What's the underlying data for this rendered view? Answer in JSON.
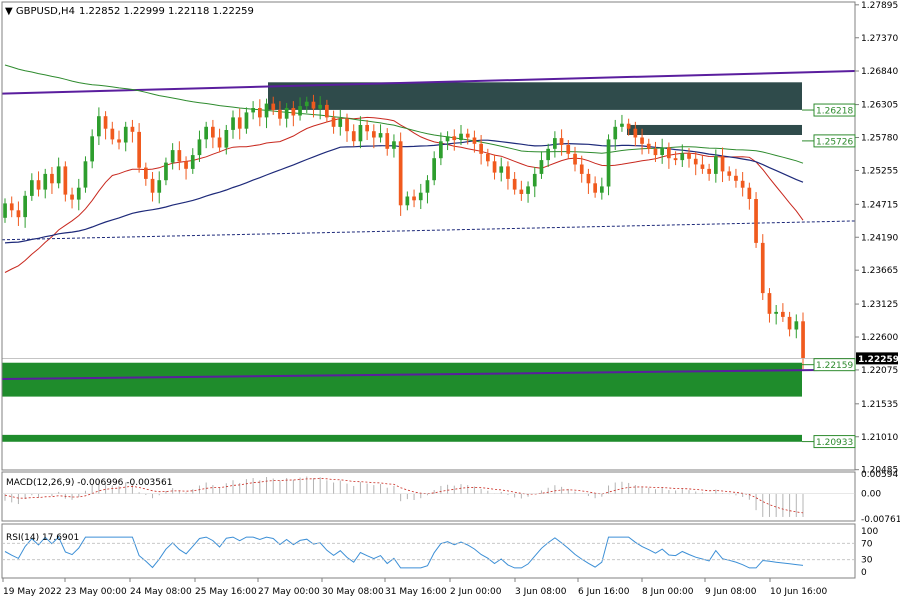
{
  "chart_data": {
    "type": "candlestick",
    "symbol": "GBPUSD,H4",
    "ohlc_header": "1.22852 1.22999 1.22118 1.22259",
    "price_axis": {
      "ylim": [
        1.2048,
        1.2794
      ],
      "ticks": [
        "1.27895",
        "1.27370",
        "1.26840",
        "1.26305",
        "1.25780",
        "1.25255",
        "1.24715",
        "1.24190",
        "1.23665",
        "1.23125",
        "1.22600",
        "1.22075",
        "1.21535",
        "1.21010",
        "1.20485"
      ]
    },
    "last_price": "1.22259",
    "level_labels": [
      "1.26218",
      "1.25726",
      "1.22159",
      "1.20933"
    ],
    "x_ticks": [
      "19 May 2022",
      "23 May 00:00",
      "24 May 08:00",
      "25 May 16:00",
      "27 May 00:00",
      "30 May 08:00",
      "31 May 16:00",
      "2 Jun 00:00",
      "3 Jun 08:00",
      "6 Jun 16:00",
      "8 Jun 00:00",
      "9 Jun 08:00",
      "10 Jun 16:00"
    ],
    "closes": [
      1.2473,
      1.2462,
      1.2451,
      1.2485,
      1.251,
      1.2495,
      1.252,
      1.2505,
      1.2532,
      1.2487,
      1.2479,
      1.2498,
      1.254,
      1.258,
      1.2612,
      1.2592,
      1.2575,
      1.257,
      1.2595,
      1.2587,
      1.253,
      1.2512,
      1.249,
      1.251,
      1.2538,
      1.2558,
      1.254,
      1.2528,
      1.255,
      1.2575,
      1.2595,
      1.2578,
      1.2562,
      1.259,
      1.261,
      1.2592,
      1.2618,
      1.2625,
      1.261,
      1.2632,
      1.2622,
      1.2608,
      1.2625,
      1.2613,
      1.2628,
      1.2635,
      1.2624,
      1.263,
      1.261,
      1.2595,
      1.2608,
      1.2588,
      1.2572,
      1.2598,
      1.2588,
      1.2578,
      1.2585,
      1.256,
      1.2572,
      1.247,
      1.2484,
      1.2478,
      1.249,
      1.251,
      1.2545,
      1.2572,
      1.258,
      1.2574,
      1.2584,
      1.2578,
      1.2568,
      1.2552,
      1.254,
      1.2522,
      1.2532,
      1.2512,
      1.2495,
      1.2488,
      1.25,
      1.252,
      1.2542,
      1.256,
      1.2577,
      1.2566,
      1.2552,
      1.2535,
      1.252,
      1.2505,
      1.249,
      1.25,
      1.2575,
      1.2595,
      1.26,
      1.2592,
      1.2578,
      1.2568,
      1.256,
      1.255,
      1.2562,
      1.2545,
      1.2542,
      1.2553,
      1.2544,
      1.2535,
      1.2528,
      1.252,
      1.2548,
      1.2524,
      1.2517,
      1.2509,
      1.2498,
      1.248,
      1.241,
      1.233,
      1.2297,
      1.23,
      1.2292,
      1.2272,
      1.2285,
      1.2226
    ],
    "macd": {
      "label": "MACD(12,26,9) -0.006996 -0.003561",
      "ticks": [
        "0.00594",
        "0.00",
        "-0.007612"
      ]
    },
    "rsi": {
      "label": "RSI(14) 17.6901",
      "ticks": [
        "100",
        "70",
        "30",
        "0"
      ],
      "levels": [
        70,
        30
      ]
    },
    "colors": {
      "bull": "#2e9e2e",
      "bear": "#f05a1e",
      "zone_dark": "#2f4b4b",
      "zone_green": "#1f8c2c",
      "ma_red": "#c8281e",
      "ma_blue": "#1e2a7a",
      "ma_green": "#2e8b2e",
      "trend": "#5a1e9e"
    }
  }
}
